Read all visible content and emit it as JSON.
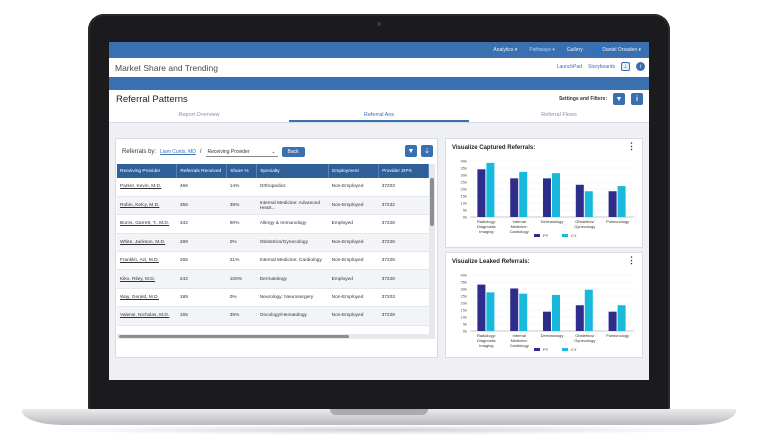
{
  "nav": {
    "items": [
      "Analytics ▾",
      "Pathways ▾",
      "Gallery",
      "Daniel Orsaden ▾"
    ],
    "active_index": 1
  },
  "app": {
    "title": "Market Share and Trending",
    "launchpad": "LaunchPad",
    "storyboards": "Storyboards"
  },
  "page": {
    "title": "Referral Patterns",
    "filters_label": "Settings and Filters:"
  },
  "tabs": [
    {
      "label": "Report Overview",
      "active": false
    },
    {
      "label": "Referral Ans",
      "active": true
    },
    {
      "label": "Referral Flows",
      "active": false
    }
  ],
  "panel": {
    "referrals_by": "Referrals by:",
    "crumb": "Liam Curtis, MD",
    "separator": "/",
    "select_value": "Receiving Provider",
    "back_label": "Back"
  },
  "table": {
    "headers": [
      "Receiving Provider",
      "Referrals Received",
      "Share %",
      "Specialty",
      "Employment",
      "Provider ZIPS"
    ],
    "rows": [
      [
        "Parker, Kevin, M.D.",
        "466",
        "14%",
        "Orthopedics",
        "Non-Employed",
        "37203"
      ],
      [
        "Robin, Kelcy, M.D.",
        "355",
        "38%",
        "Internal Medicine: Advanced Heart...",
        "Non-Employed",
        "37232"
      ],
      [
        "Burns, Garrett, T., M.D.",
        "342",
        "90%",
        "Allergy & Immunology",
        "Employed",
        "37228"
      ],
      [
        "White, Jackson, M.D.",
        "289",
        "0%",
        "Obstetrics/Gynecology",
        "Non-Employed",
        "37228"
      ],
      [
        "Franklin, Azi, M.D.",
        "265",
        "21%",
        "Internal Medicine: Cardiology",
        "Non-Employed",
        "37228"
      ],
      [
        "Kiko, Riley, M.D.",
        "242",
        "100%",
        "Dermatology",
        "Employed",
        "37228"
      ],
      [
        "Way, Gerald, M.D.",
        "189",
        "0%",
        "Neurology: Neurosurgery",
        "Non-Employed",
        "37203"
      ],
      [
        "Valensi, Nicholas, M.D.",
        "165",
        "35%",
        "Oncology/Hematology",
        "Non-Employed",
        "37228"
      ]
    ]
  },
  "chart_data": [
    {
      "type": "bar",
      "title": "Visualize Captured Referrals:",
      "categories": [
        "Radiology: Diagnostic Imaging",
        "Internal Medicine: Cardiology",
        "Dermatology",
        "Obstetrics/ Gynecology",
        "Pulmonology"
      ],
      "series": [
        {
          "name": "PY",
          "values": [
            37,
            30,
            30,
            25,
            20
          ],
          "color": "#2e2d8c"
        },
        {
          "name": "CY",
          "values": [
            42,
            35,
            34,
            20,
            24
          ],
          "color": "#19b9de"
        }
      ],
      "ylim": [
        0,
        45
      ],
      "yticks": [
        "40k",
        "35k",
        "30k",
        "25k",
        "20k",
        "15k",
        "10k",
        "5k",
        "0k"
      ]
    },
    {
      "type": "bar",
      "title": "Visualize Leaked Referrals:",
      "categories": [
        "Radiology: Diagnostic Imaging",
        "Internal Medicine: Cardiology",
        "Dermatology",
        "Obstetrics/ Gynecology",
        "Pulmonology"
      ],
      "series": [
        {
          "name": "PY",
          "values": [
            36,
            33,
            15,
            20,
            15
          ],
          "color": "#2e2d8c"
        },
        {
          "name": "CY",
          "values": [
            30,
            29,
            28,
            32,
            20
          ],
          "color": "#19b9de"
        }
      ],
      "ylim": [
        0,
        45
      ],
      "yticks": [
        "40k",
        "35k",
        "30k",
        "25k",
        "20k",
        "15k",
        "10k",
        "5k",
        "0k"
      ]
    }
  ]
}
